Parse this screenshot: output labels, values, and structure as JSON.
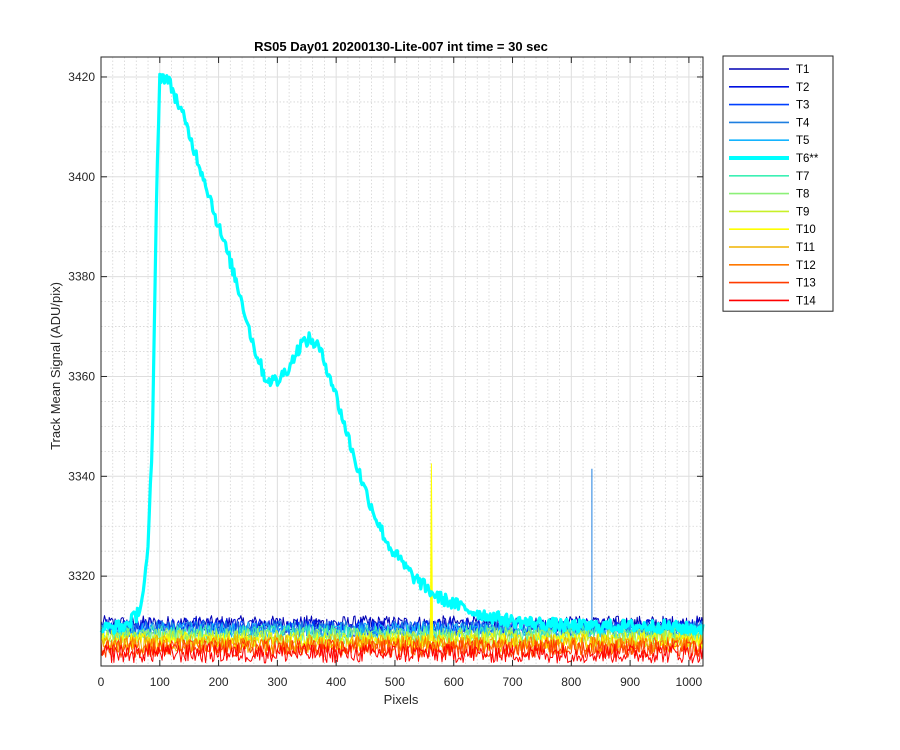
{
  "chart_data": {
    "type": "line",
    "title": "RS05 Day01 20200130-Lite-007 int time = 30 sec",
    "xlabel": "Pixels",
    "ylabel": "Track Mean Signal (ADU/pix)",
    "xlim": [
      0,
      1024
    ],
    "ylim": [
      3302,
      3424
    ],
    "xticks": [
      0,
      100,
      200,
      300,
      400,
      500,
      600,
      700,
      800,
      900,
      1000
    ],
    "yticks": [
      3320,
      3340,
      3360,
      3380,
      3400,
      3420
    ],
    "grid": true,
    "minor_grid": true,
    "legend_position": "outside-top-right",
    "series": [
      {
        "name": "T1",
        "color": "#0000b3",
        "baseline": 3310.5,
        "noise": 1.6
      },
      {
        "name": "T2",
        "color": "#0010e0",
        "baseline": 3310.0,
        "noise": 1.6
      },
      {
        "name": "T3",
        "color": "#0040ff",
        "baseline": 3309.5,
        "noise": 1.6
      },
      {
        "name": "T4",
        "color": "#1e7fe0",
        "baseline": 3309.5,
        "noise": 1.6,
        "spike": {
          "x": 835,
          "y": 3341.5
        }
      },
      {
        "name": "T5",
        "color": "#14b4ff",
        "baseline": 3309.0,
        "noise": 1.7
      },
      {
        "name": "T6**",
        "color": "#00ffff",
        "highlight": true,
        "profile": [
          [
            0,
            3309.5
          ],
          [
            40,
            3310.0
          ],
          [
            60,
            3312.0
          ],
          [
            70,
            3315.5
          ],
          [
            80,
            3325.0
          ],
          [
            88,
            3350.0
          ],
          [
            95,
            3400.0
          ],
          [
            100,
            3420.0
          ],
          [
            110,
            3420.0
          ],
          [
            120,
            3418.0
          ],
          [
            140,
            3412.0
          ],
          [
            160,
            3405.0
          ],
          [
            180,
            3398.0
          ],
          [
            200,
            3390.0
          ],
          [
            220,
            3383.0
          ],
          [
            240,
            3375.0
          ],
          [
            260,
            3366.0
          ],
          [
            280,
            3359.5
          ],
          [
            300,
            3359.0
          ],
          [
            320,
            3362.0
          ],
          [
            340,
            3366.5
          ],
          [
            355,
            3367.5
          ],
          [
            370,
            3366.0
          ],
          [
            390,
            3360.0
          ],
          [
            410,
            3352.0
          ],
          [
            430,
            3344.0
          ],
          [
            450,
            3337.0
          ],
          [
            470,
            3331.0
          ],
          [
            490,
            3326.0
          ],
          [
            510,
            3323.0
          ],
          [
            530,
            3320.0
          ],
          [
            550,
            3318.0
          ],
          [
            570,
            3316.0
          ],
          [
            600,
            3314.5
          ],
          [
            630,
            3313.0
          ],
          [
            660,
            3312.0
          ],
          [
            700,
            3311.0
          ],
          [
            750,
            3310.5
          ],
          [
            800,
            3310.0
          ],
          [
            850,
            3310.0
          ],
          [
            900,
            3310.0
          ],
          [
            950,
            3310.0
          ],
          [
            1000,
            3309.5
          ],
          [
            1024,
            3309.5
          ]
        ]
      },
      {
        "name": "T7",
        "color": "#3cf0b4",
        "baseline": 3308.5,
        "noise": 1.7
      },
      {
        "name": "T8",
        "color": "#8cf078",
        "baseline": 3308.0,
        "noise": 1.7
      },
      {
        "name": "T9",
        "color": "#c8f028",
        "baseline": 3307.5,
        "noise": 1.7
      },
      {
        "name": "T10",
        "color": "#ffff00",
        "baseline": 3307.0,
        "noise": 1.7,
        "spike": {
          "x": 562,
          "y": 3342.5
        }
      },
      {
        "name": "T11",
        "color": "#f0b400",
        "baseline": 3306.5,
        "noise": 1.8
      },
      {
        "name": "T12",
        "color": "#ff7800",
        "baseline": 3306.0,
        "noise": 1.8
      },
      {
        "name": "T13",
        "color": "#ff3c00",
        "baseline": 3305.5,
        "noise": 1.8
      },
      {
        "name": "T14",
        "color": "#ff0000",
        "baseline": 3304.5,
        "noise": 1.9
      }
    ]
  }
}
